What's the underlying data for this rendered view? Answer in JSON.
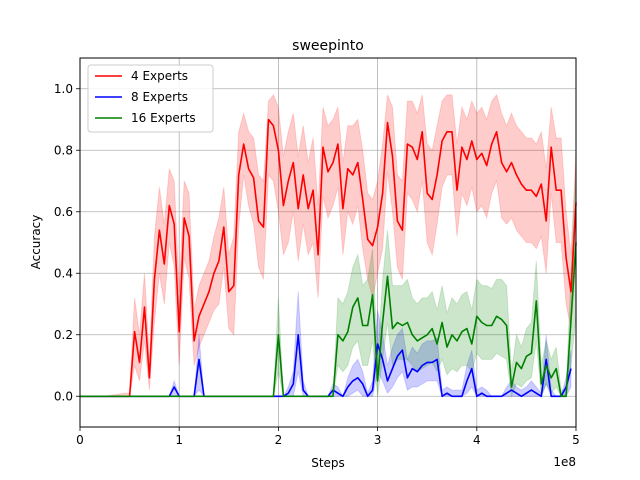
{
  "chart_data": {
    "type": "line",
    "title": "sweepinto",
    "xlabel": "Steps",
    "ylabel": "Accuracy",
    "x_offset_label": "1e8",
    "xlim": [
      0,
      5
    ],
    "ylim": [
      -0.1,
      1.1
    ],
    "xticks": [
      0,
      1,
      2,
      3,
      4,
      5
    ],
    "xtick_labels": [
      "0",
      "1",
      "2",
      "3",
      "4",
      "5"
    ],
    "yticks": [
      0.0,
      0.2,
      0.4,
      0.6,
      0.8,
      1.0
    ],
    "ytick_labels": [
      "0.0",
      "0.2",
      "0.4",
      "0.6",
      "0.8",
      "1.0"
    ],
    "grid": true,
    "legend_position": "top-left",
    "series": [
      {
        "name": "4 Experts",
        "color": "#ff0000",
        "x": [
          0,
          0.25,
          0.45,
          0.5,
          0.55,
          0.6,
          0.65,
          0.7,
          0.75,
          0.8,
          0.85,
          0.9,
          0.95,
          1.0,
          1.05,
          1.1,
          1.15,
          1.2,
          1.25,
          1.3,
          1.35,
          1.4,
          1.45,
          1.5,
          1.55,
          1.6,
          1.65,
          1.7,
          1.75,
          1.8,
          1.85,
          1.9,
          1.95,
          2.0,
          2.05,
          2.1,
          2.15,
          2.2,
          2.25,
          2.3,
          2.35,
          2.4,
          2.45,
          2.5,
          2.55,
          2.6,
          2.65,
          2.7,
          2.75,
          2.8,
          2.85,
          2.9,
          2.95,
          3.0,
          3.05,
          3.1,
          3.15,
          3.2,
          3.25,
          3.3,
          3.35,
          3.4,
          3.45,
          3.5,
          3.55,
          3.6,
          3.65,
          3.7,
          3.75,
          3.8,
          3.85,
          3.9,
          3.95,
          4.0,
          4.05,
          4.1,
          4.15,
          4.2,
          4.25,
          4.3,
          4.35,
          4.4,
          4.45,
          4.5,
          4.55,
          4.6,
          4.65,
          4.7,
          4.75,
          4.8,
          4.85,
          4.9,
          4.95,
          5.0
        ],
        "y": [
          0.0,
          0.0,
          0.0,
          0.0,
          0.21,
          0.11,
          0.29,
          0.06,
          0.38,
          0.54,
          0.43,
          0.62,
          0.56,
          0.21,
          0.58,
          0.52,
          0.18,
          0.26,
          0.3,
          0.34,
          0.4,
          0.44,
          0.55,
          0.34,
          0.36,
          0.72,
          0.82,
          0.74,
          0.71,
          0.57,
          0.55,
          0.9,
          0.88,
          0.8,
          0.62,
          0.7,
          0.76,
          0.61,
          0.72,
          0.61,
          0.67,
          0.46,
          0.81,
          0.73,
          0.76,
          0.82,
          0.61,
          0.74,
          0.72,
          0.76,
          0.64,
          0.51,
          0.49,
          0.55,
          0.66,
          0.89,
          0.78,
          0.57,
          0.54,
          0.82,
          0.81,
          0.77,
          0.86,
          0.66,
          0.64,
          0.72,
          0.83,
          0.86,
          0.86,
          0.67,
          0.81,
          0.77,
          0.83,
          0.77,
          0.79,
          0.75,
          0.82,
          0.86,
          0.76,
          0.73,
          0.76,
          0.72,
          0.69,
          0.67,
          0.67,
          0.65,
          0.69,
          0.57,
          0.81,
          0.67,
          0.67,
          0.45,
          0.34,
          0.63
        ],
        "lower": [
          0.0,
          0.0,
          0.0,
          0.0,
          0.1,
          0.05,
          0.18,
          0.02,
          0.24,
          0.4,
          0.3,
          0.5,
          0.42,
          0.1,
          0.45,
          0.38,
          0.1,
          0.16,
          0.2,
          0.24,
          0.28,
          0.3,
          0.42,
          0.22,
          0.2,
          0.55,
          0.72,
          0.62,
          0.56,
          0.42,
          0.38,
          0.72,
          0.7,
          0.6,
          0.46,
          0.5,
          0.6,
          0.44,
          0.56,
          0.46,
          0.5,
          0.32,
          0.65,
          0.58,
          0.62,
          0.68,
          0.46,
          0.6,
          0.56,
          0.62,
          0.48,
          0.38,
          0.32,
          0.4,
          0.48,
          0.73,
          0.6,
          0.42,
          0.38,
          0.66,
          0.64,
          0.6,
          0.7,
          0.5,
          0.46,
          0.56,
          0.68,
          0.72,
          0.72,
          0.52,
          0.66,
          0.62,
          0.68,
          0.6,
          0.62,
          0.58,
          0.66,
          0.7,
          0.58,
          0.56,
          0.58,
          0.54,
          0.52,
          0.5,
          0.5,
          0.48,
          0.52,
          0.4,
          0.66,
          0.5,
          0.5,
          0.3,
          0.22,
          0.45
        ],
        "upper": [
          0.0,
          0.0,
          0.01,
          0.01,
          0.32,
          0.2,
          0.4,
          0.12,
          0.52,
          0.68,
          0.56,
          0.74,
          0.7,
          0.34,
          0.7,
          0.66,
          0.28,
          0.36,
          0.4,
          0.44,
          0.52,
          0.58,
          0.68,
          0.46,
          0.52,
          0.86,
          0.92,
          0.86,
          0.84,
          0.72,
          0.7,
          0.96,
          0.98,
          0.94,
          0.78,
          0.86,
          0.92,
          0.78,
          0.88,
          0.76,
          0.84,
          0.62,
          0.94,
          0.88,
          0.9,
          0.94,
          0.76,
          0.88,
          0.88,
          0.9,
          0.8,
          0.66,
          0.64,
          0.7,
          0.82,
          0.98,
          0.94,
          0.72,
          0.7,
          0.96,
          0.96,
          0.92,
          0.98,
          0.82,
          0.8,
          0.88,
          0.96,
          0.98,
          0.98,
          0.82,
          0.94,
          0.9,
          0.96,
          0.92,
          0.94,
          0.9,
          0.96,
          0.98,
          0.92,
          0.88,
          0.92,
          0.88,
          0.86,
          0.84,
          0.84,
          0.82,
          0.86,
          0.74,
          0.94,
          0.84,
          0.84,
          0.6,
          0.46,
          0.8
        ]
      },
      {
        "name": "8 Experts",
        "color": "#0000ff",
        "x": [
          0,
          0.9,
          0.95,
          1.0,
          1.05,
          1.1,
          1.15,
          1.2,
          1.25,
          1.3,
          1.85,
          1.95,
          2.05,
          2.1,
          2.15,
          2.2,
          2.25,
          2.3,
          2.45,
          2.5,
          2.55,
          2.6,
          2.65,
          2.7,
          2.75,
          2.8,
          2.85,
          2.9,
          2.95,
          3.0,
          3.05,
          3.1,
          3.15,
          3.2,
          3.25,
          3.3,
          3.35,
          3.4,
          3.45,
          3.5,
          3.55,
          3.6,
          3.65,
          3.7,
          3.75,
          3.8,
          3.85,
          3.9,
          3.95,
          4.0,
          4.05,
          4.1,
          4.15,
          4.2,
          4.25,
          4.3,
          4.35,
          4.4,
          4.45,
          4.5,
          4.55,
          4.6,
          4.65,
          4.7,
          4.75,
          4.8,
          4.85,
          4.9,
          4.95
        ],
        "y": [
          0.0,
          0.0,
          0.03,
          0.0,
          0.0,
          0.0,
          0.0,
          0.12,
          0.0,
          0.0,
          0.0,
          0.0,
          0.0,
          0.01,
          0.04,
          0.2,
          0.02,
          0.0,
          0.0,
          0.0,
          0.02,
          0.01,
          0.0,
          0.03,
          0.05,
          0.06,
          0.04,
          0.0,
          0.02,
          0.17,
          0.12,
          0.05,
          0.09,
          0.13,
          0.15,
          0.06,
          0.09,
          0.08,
          0.1,
          0.11,
          0.11,
          0.12,
          0.0,
          0.01,
          0.0,
          0.0,
          0.0,
          0.05,
          0.09,
          0.0,
          0.01,
          0.0,
          0.0,
          0.0,
          0.0,
          0.01,
          0.02,
          0.01,
          0.0,
          0.01,
          0.02,
          0.01,
          0.0,
          0.12,
          0.0,
          0.0,
          0.0,
          0.03,
          0.09
        ],
        "lower": [
          0.0,
          0.0,
          0.0,
          0.0,
          0.0,
          0.0,
          0.0,
          0.02,
          0.0,
          0.0,
          0.0,
          0.0,
          0.0,
          0.0,
          0.0,
          0.08,
          0.0,
          0.0,
          0.0,
          0.0,
          0.0,
          0.0,
          0.0,
          0.0,
          0.01,
          0.02,
          0.0,
          0.0,
          0.0,
          0.08,
          0.05,
          0.01,
          0.03,
          0.06,
          0.08,
          0.02,
          0.03,
          0.03,
          0.04,
          0.05,
          0.05,
          0.05,
          0.0,
          0.0,
          0.0,
          0.0,
          0.0,
          0.01,
          0.03,
          0.0,
          0.0,
          0.0,
          0.0,
          0.0,
          0.0,
          0.0,
          0.0,
          0.0,
          0.0,
          0.0,
          0.0,
          0.0,
          0.0,
          0.04,
          0.0,
          0.0,
          0.0,
          0.0,
          0.03
        ],
        "upper": [
          0.0,
          0.0,
          0.05,
          0.0,
          0.0,
          0.0,
          0.0,
          0.2,
          0.0,
          0.0,
          0.0,
          0.0,
          0.0,
          0.03,
          0.08,
          0.34,
          0.05,
          0.0,
          0.0,
          0.0,
          0.04,
          0.03,
          0.0,
          0.06,
          0.1,
          0.12,
          0.08,
          0.01,
          0.05,
          0.28,
          0.2,
          0.1,
          0.16,
          0.2,
          0.22,
          0.12,
          0.16,
          0.14,
          0.17,
          0.18,
          0.18,
          0.19,
          0.02,
          0.03,
          0.02,
          0.02,
          0.02,
          0.1,
          0.15,
          0.02,
          0.03,
          0.02,
          0.0,
          0.0,
          0.0,
          0.03,
          0.05,
          0.03,
          0.02,
          0.03,
          0.05,
          0.03,
          0.01,
          0.2,
          0.02,
          0.0,
          0.0,
          0.06,
          0.15
        ]
      },
      {
        "name": "16 Experts",
        "color": "#008000",
        "x": [
          0,
          1.9,
          1.95,
          2.0,
          2.05,
          2.1,
          2.15,
          2.2,
          2.25,
          2.55,
          2.6,
          2.65,
          2.7,
          2.75,
          2.8,
          2.85,
          2.9,
          2.95,
          3.0,
          3.05,
          3.1,
          3.15,
          3.2,
          3.25,
          3.3,
          3.35,
          3.4,
          3.45,
          3.5,
          3.55,
          3.6,
          3.65,
          3.7,
          3.75,
          3.8,
          3.85,
          3.9,
          3.95,
          4.0,
          4.05,
          4.1,
          4.15,
          4.2,
          4.25,
          4.3,
          4.35,
          4.4,
          4.45,
          4.5,
          4.55,
          4.6,
          4.65,
          4.7,
          4.75,
          4.8,
          4.85,
          4.9,
          4.95,
          5.0
        ],
        "y": [
          0.0,
          0.0,
          0.0,
          0.2,
          0.0,
          0.0,
          0.0,
          0.0,
          0.0,
          0.0,
          0.2,
          0.18,
          0.21,
          0.29,
          0.32,
          0.23,
          0.23,
          0.33,
          0.05,
          0.24,
          0.39,
          0.22,
          0.24,
          0.23,
          0.24,
          0.2,
          0.18,
          0.19,
          0.2,
          0.22,
          0.17,
          0.24,
          0.16,
          0.2,
          0.18,
          0.21,
          0.22,
          0.17,
          0.26,
          0.24,
          0.23,
          0.23,
          0.26,
          0.25,
          0.23,
          0.03,
          0.11,
          0.09,
          0.13,
          0.14,
          0.31,
          0.04,
          0.1,
          0.06,
          0.09,
          0.0,
          0.0,
          0.25,
          0.5
        ],
        "lower": [
          0.0,
          0.0,
          0.0,
          0.08,
          0.0,
          0.0,
          0.0,
          0.0,
          0.0,
          0.0,
          0.1,
          0.08,
          0.1,
          0.16,
          0.18,
          0.1,
          0.1,
          0.18,
          0.0,
          0.12,
          0.24,
          0.1,
          0.12,
          0.12,
          0.12,
          0.1,
          0.08,
          0.09,
          0.1,
          0.11,
          0.08,
          0.12,
          0.07,
          0.09,
          0.08,
          0.1,
          0.1,
          0.08,
          0.14,
          0.12,
          0.12,
          0.12,
          0.14,
          0.13,
          0.12,
          0.0,
          0.04,
          0.03,
          0.05,
          0.06,
          0.18,
          0.0,
          0.04,
          0.01,
          0.03,
          0.0,
          0.0,
          0.1,
          0.26
        ],
        "upper": [
          0.0,
          0.0,
          0.0,
          0.32,
          0.0,
          0.0,
          0.0,
          0.0,
          0.0,
          0.0,
          0.32,
          0.3,
          0.34,
          0.42,
          0.46,
          0.36,
          0.38,
          0.48,
          0.12,
          0.38,
          0.54,
          0.36,
          0.36,
          0.36,
          0.38,
          0.32,
          0.3,
          0.32,
          0.32,
          0.34,
          0.28,
          0.36,
          0.27,
          0.32,
          0.3,
          0.33,
          0.34,
          0.28,
          0.38,
          0.36,
          0.36,
          0.35,
          0.38,
          0.38,
          0.36,
          0.08,
          0.2,
          0.16,
          0.22,
          0.24,
          0.44,
          0.1,
          0.18,
          0.12,
          0.16,
          0.02,
          0.02,
          0.4,
          0.74
        ]
      }
    ]
  }
}
